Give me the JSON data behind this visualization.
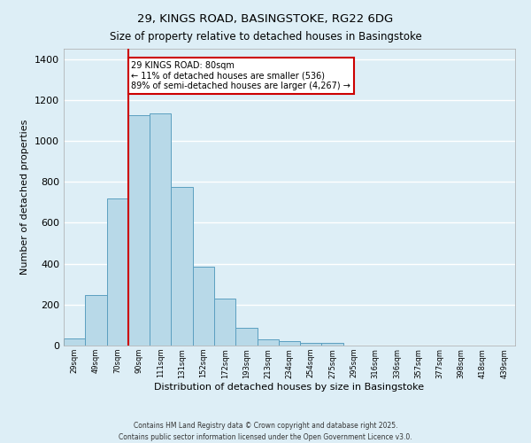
{
  "title_line1": "29, KINGS ROAD, BASINGSTOKE, RG22 6DG",
  "title_line2": "Size of property relative to detached houses in Basingstoke",
  "xlabel": "Distribution of detached houses by size in Basingstoke",
  "ylabel": "Number of detached properties",
  "bar_labels": [
    "29sqm",
    "49sqm",
    "70sqm",
    "90sqm",
    "111sqm",
    "131sqm",
    "152sqm",
    "172sqm",
    "193sqm",
    "213sqm",
    "234sqm",
    "254sqm",
    "275sqm",
    "295sqm",
    "316sqm",
    "336sqm",
    "357sqm",
    "377sqm",
    "398sqm",
    "418sqm",
    "439sqm"
  ],
  "bar_values": [
    35,
    248,
    720,
    1125,
    1135,
    775,
    385,
    230,
    88,
    30,
    20,
    15,
    15,
    0,
    0,
    0,
    0,
    0,
    0,
    0,
    0
  ],
  "bar_color": "#b8d9e8",
  "bar_edge_color": "#5b9fc0",
  "background_color": "#ddeef6",
  "fig_background_color": "#ddeef6",
  "grid_color": "#ffffff",
  "ylim": [
    0,
    1450
  ],
  "yticks": [
    0,
    200,
    400,
    600,
    800,
    1000,
    1200,
    1400
  ],
  "property_line_color": "#cc0000",
  "annotation_title": "29 KINGS ROAD: 80sqm",
  "annotation_line1": "← 11% of detached houses are smaller (536)",
  "annotation_line2": "89% of semi-detached houses are larger (4,267) →",
  "annotation_box_color": "#ffffff",
  "annotation_box_edge_color": "#cc0000",
  "footer_line1": "Contains HM Land Registry data © Crown copyright and database right 2025.",
  "footer_line2": "Contains public sector information licensed under the Open Government Licence v3.0."
}
